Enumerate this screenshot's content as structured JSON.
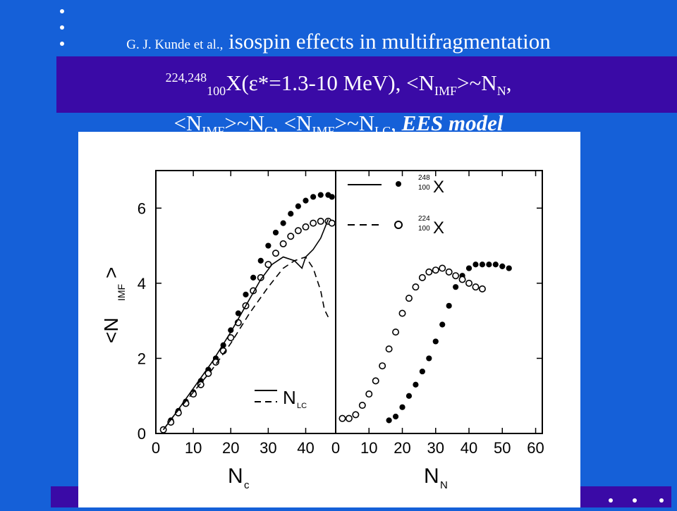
{
  "slide": {
    "author": "G. J. Kunde et al.,",
    "title_line1": "isospin effects in multifragmentation",
    "nuclei_sup": "224,248",
    "nuclei_sub": "100",
    "reaction": "X(ε*=1.3-10 MeV), <N",
    "imf": "IMF",
    "sim": ">~N",
    "n_sub": "N",
    "comma": ",",
    "lt": "<N",
    "sim2": ">~N",
    "c_sub": "C",
    "comma2": ", <N",
    "sim3": ">~N",
    "lc_sub": "LC",
    "comma3": ", ",
    "model": "EES model",
    "colors": {
      "background": "#1560d8",
      "band": "#3a0aa6",
      "text": "#ffffff"
    }
  },
  "chart_data": [
    {
      "type": "scatter",
      "panel": "left",
      "xlabel": "N_C",
      "ylabel": "<N_IMF>",
      "xlim": [
        0,
        48
      ],
      "ylim": [
        0,
        7
      ],
      "xticks": [
        "0",
        "10",
        "20",
        "30",
        "40"
      ],
      "yticks": [
        "0",
        "2",
        "4",
        "6"
      ],
      "legend": "bottom-right",
      "legend_label": "N_LC",
      "series": [
        {
          "name": "248X",
          "marker": "filled-circle",
          "x": [
            2,
            4,
            6,
            8,
            10,
            12,
            14,
            16,
            18,
            20,
            22,
            24,
            26,
            28,
            30,
            32,
            34,
            36,
            38,
            40,
            42,
            44,
            46,
            47
          ],
          "y": [
            0.1,
            0.35,
            0.6,
            0.85,
            1.1,
            1.4,
            1.7,
            2.0,
            2.35,
            2.75,
            3.2,
            3.7,
            4.15,
            4.6,
            5.0,
            5.35,
            5.6,
            5.85,
            6.05,
            6.2,
            6.3,
            6.35,
            6.35,
            6.3
          ]
        },
        {
          "name": "224X",
          "marker": "open-circle",
          "x": [
            2,
            4,
            6,
            8,
            10,
            12,
            14,
            16,
            18,
            20,
            22,
            24,
            26,
            28,
            30,
            32,
            34,
            36,
            38,
            40,
            42,
            44,
            46,
            47
          ],
          "y": [
            0.1,
            0.3,
            0.55,
            0.8,
            1.05,
            1.3,
            1.6,
            1.9,
            2.2,
            2.55,
            2.95,
            3.4,
            3.8,
            4.15,
            4.5,
            4.8,
            5.05,
            5.25,
            5.4,
            5.5,
            5.6,
            5.65,
            5.65,
            5.6
          ]
        },
        {
          "name": "248X-model",
          "style": "solid",
          "x": [
            2,
            5,
            10,
            15,
            20,
            24,
            28,
            31,
            34,
            37,
            39,
            40,
            42,
            44,
            46
          ],
          "y": [
            0.1,
            0.5,
            1.2,
            1.9,
            2.7,
            3.4,
            4.1,
            4.5,
            4.7,
            4.6,
            4.4,
            4.7,
            4.9,
            5.2,
            5.7
          ]
        },
        {
          "name": "224X-model",
          "style": "dashed",
          "x": [
            2,
            5,
            10,
            15,
            20,
            25,
            30,
            34,
            37,
            40,
            42,
            44,
            45,
            46
          ],
          "y": [
            0.1,
            0.5,
            1.1,
            1.7,
            2.4,
            3.2,
            3.9,
            4.4,
            4.6,
            4.7,
            4.4,
            3.8,
            3.3,
            3.1
          ]
        }
      ]
    },
    {
      "type": "scatter",
      "panel": "right",
      "xlabel": "N_N",
      "ylabel": "<N_IMF>",
      "xlim": [
        0,
        62
      ],
      "ylim": [
        0,
        7
      ],
      "xticks": [
        "0",
        "10",
        "20",
        "30",
        "40",
        "50",
        "60"
      ],
      "legend": "top-left",
      "series": [
        {
          "name": "248X",
          "marker": "filled-circle",
          "x": [
            16,
            18,
            20,
            22,
            24,
            26,
            28,
            30,
            32,
            34,
            36,
            38,
            40,
            42,
            44,
            46,
            48,
            50,
            52
          ],
          "y": [
            0.35,
            0.45,
            0.7,
            1.0,
            1.3,
            1.65,
            2.0,
            2.45,
            2.9,
            3.4,
            3.9,
            4.2,
            4.4,
            4.5,
            4.5,
            4.5,
            4.5,
            4.45,
            4.4
          ]
        },
        {
          "name": "224X",
          "marker": "open-circle",
          "x": [
            2,
            4,
            6,
            8,
            10,
            12,
            14,
            16,
            18,
            20,
            22,
            24,
            26,
            28,
            30,
            32,
            34,
            36,
            38,
            40,
            42,
            44
          ],
          "y": [
            0.4,
            0.4,
            0.5,
            0.75,
            1.05,
            1.4,
            1.8,
            2.25,
            2.7,
            3.2,
            3.6,
            3.9,
            4.15,
            4.3,
            4.35,
            4.4,
            4.3,
            4.2,
            4.1,
            4.0,
            3.9,
            3.85
          ]
        }
      ]
    }
  ],
  "figure_text": {
    "legend_x": "X",
    "legend_248_sup": "248",
    "legend_224_sup": "224",
    "legend_sub": "100",
    "nlc_main": "N",
    "nlc_sub": "LC",
    "ylabel_n": "<N",
    "ylabel_sub": "IMF",
    "ylabel_close": ">",
    "xlabel_left_n": "N",
    "xlabel_left_sub": "c",
    "xlabel_right_n": "N",
    "xlabel_right_sub": "N"
  }
}
